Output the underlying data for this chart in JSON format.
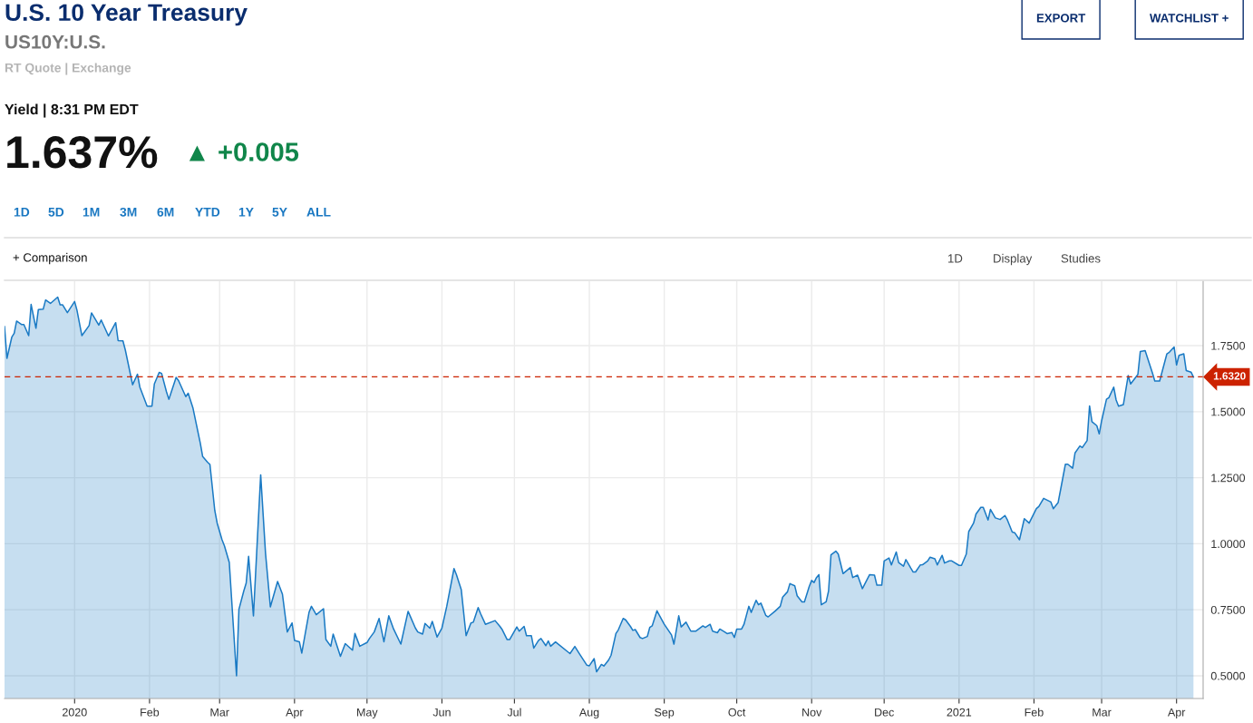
{
  "chart_data": {
    "type": "area",
    "title": "U.S. 10 Year Treasury",
    "subtitle": "US10Y:U.S.",
    "annotations": [
      "RT Quote | Exchange",
      "Yield | 8:31 PM EDT",
      "1.637%",
      "▲ +0.005",
      "EXPORT",
      "WATCHLIST +",
      "1D",
      "5D",
      "1M",
      "3M",
      "6M",
      "YTD",
      "1Y",
      "5Y",
      "ALL",
      "+ Comparison",
      "1D",
      "Display",
      "Studies"
    ],
    "x": [
      "2019-12-03",
      "2019-12-04",
      "2019-12-06",
      "2019-12-07",
      "2019-12-08",
      "2019-12-10",
      "2019-12-11",
      "2019-12-13",
      "2019-12-14",
      "2019-12-16",
      "2019-12-17",
      "2019-12-19",
      "2019-12-20",
      "2019-12-22",
      "2019-12-25",
      "2019-12-26",
      "2019-12-27",
      "2019-12-29",
      "2020-01-01",
      "2020-01-02",
      "2020-01-04",
      "2020-01-07",
      "2020-01-08",
      "2020-01-09",
      "2020-01-11",
      "2020-01-12",
      "2020-01-15",
      "2020-01-18",
      "2020-01-19",
      "2020-01-21",
      "2020-01-22",
      "2020-01-25",
      "2020-01-27",
      "2020-01-28",
      "2020-01-31",
      "2020-02-02",
      "2020-02-03",
      "2020-02-05",
      "2020-02-06",
      "2020-02-08",
      "2020-02-09",
      "2020-02-12",
      "2020-02-13",
      "2020-02-16",
      "2020-02-17",
      "2020-02-19",
      "2020-02-22",
      "2020-02-23",
      "2020-02-25",
      "2020-02-26",
      "2020-02-28",
      "2020-02-29",
      "2020-03-02",
      "2020-03-03",
      "2020-03-05",
      "2020-03-08",
      "2020-03-09",
      "2020-03-11",
      "2020-03-12",
      "2020-03-13",
      "2020-03-15",
      "2020-03-18",
      "2020-03-20",
      "2020-03-22",
      "2020-03-25",
      "2020-03-27",
      "2020-03-29",
      "2020-03-31",
      "2020-04-01",
      "2020-04-03",
      "2020-04-04",
      "2020-04-07",
      "2020-04-08",
      "2020-04-10",
      "2020-04-13",
      "2020-04-14",
      "2020-04-16",
      "2020-04-17",
      "2020-04-20",
      "2020-04-22",
      "2020-04-25",
      "2020-04-26",
      "2020-04-28",
      "2020-05-01",
      "2020-05-02",
      "2020-05-04",
      "2020-05-06",
      "2020-05-08",
      "2020-05-10",
      "2020-05-12",
      "2020-05-15",
      "2020-05-18",
      "2020-05-21",
      "2020-05-22",
      "2020-05-24",
      "2020-05-25",
      "2020-05-27",
      "2020-05-28",
      "2020-05-30",
      "2020-06-01",
      "2020-06-03",
      "2020-06-06",
      "2020-06-07",
      "2020-06-09",
      "2020-06-11",
      "2020-06-13",
      "2020-06-14",
      "2020-06-16",
      "2020-06-17",
      "2020-06-19",
      "2020-06-23",
      "2020-06-25",
      "2020-06-26",
      "2020-06-28",
      "2020-06-29",
      "2020-07-02",
      "2020-07-03",
      "2020-07-05",
      "2020-07-06",
      "2020-07-08",
      "2020-07-09",
      "2020-07-11",
      "2020-07-12",
      "2020-07-14",
      "2020-07-15",
      "2020-07-16",
      "2020-07-18",
      "2020-07-24",
      "2020-07-26",
      "2020-07-28",
      "2020-07-31",
      "2020-08-01",
      "2020-08-03",
      "2020-08-04",
      "2020-08-06",
      "2020-08-07",
      "2020-08-09",
      "2020-08-10",
      "2020-08-12",
      "2020-08-13",
      "2020-08-15",
      "2020-08-16",
      "2020-08-18",
      "2020-08-19",
      "2020-08-20",
      "2020-08-22",
      "2020-08-23",
      "2020-08-25",
      "2020-08-26",
      "2020-08-27",
      "2020-08-29",
      "2020-08-30",
      "2020-09-01",
      "2020-09-04",
      "2020-09-05",
      "2020-09-07",
      "2020-09-08",
      "2020-09-10",
      "2020-09-12",
      "2020-09-14",
      "2020-09-17",
      "2020-09-18",
      "2020-09-20",
      "2020-09-21",
      "2020-09-23",
      "2020-09-24",
      "2020-09-26",
      "2020-09-27",
      "2020-09-29",
      "2020-09-30",
      "2020-10-01",
      "2020-10-03",
      "2020-10-04",
      "2020-10-06",
      "2020-10-07",
      "2020-10-09",
      "2020-10-10",
      "2020-10-11",
      "2020-10-13",
      "2020-10-14",
      "2020-10-17",
      "2020-10-19",
      "2020-10-20",
      "2020-10-22",
      "2020-10-23",
      "2020-10-25",
      "2020-10-26",
      "2020-10-28",
      "2020-10-29",
      "2020-10-31",
      "2020-11-01",
      "2020-11-02",
      "2020-11-03",
      "2020-11-04",
      "2020-11-05",
      "2020-11-07",
      "2020-11-08",
      "2020-11-09",
      "2020-11-11",
      "2020-11-12",
      "2020-11-14",
      "2020-11-17",
      "2020-11-18",
      "2020-11-20",
      "2020-11-22",
      "2020-11-25",
      "2020-11-27",
      "2020-11-28",
      "2020-11-30",
      "2020-12-01",
      "2020-12-03",
      "2020-12-04",
      "2020-12-06",
      "2020-12-07",
      "2020-12-09",
      "2020-12-10",
      "2020-12-12",
      "2020-12-13",
      "2020-12-14",
      "2020-12-16",
      "2020-12-17",
      "2020-12-19",
      "2020-12-20",
      "2020-12-22",
      "2020-12-23",
      "2020-12-25",
      "2020-12-26",
      "2020-12-28",
      "2020-12-29",
      "2021-01-01",
      "2021-01-02",
      "2021-01-04",
      "2021-01-05",
      "2021-01-07",
      "2021-01-08",
      "2021-01-10",
      "2021-01-11",
      "2021-01-13",
      "2021-01-14",
      "2021-01-16",
      "2021-01-18",
      "2021-01-20",
      "2021-01-21",
      "2021-01-23",
      "2021-01-24",
      "2021-01-26",
      "2021-01-28",
      "2021-01-30",
      "2021-02-02",
      "2021-02-03",
      "2021-02-05",
      "2021-02-08",
      "2021-02-09",
      "2021-02-11",
      "2021-02-12",
      "2021-02-14",
      "2021-02-15",
      "2021-02-17",
      "2021-02-18",
      "2021-02-20",
      "2021-02-21",
      "2021-02-23",
      "2021-02-24",
      "2021-02-25",
      "2021-02-27",
      "2021-02-28",
      "2021-03-01",
      "2021-03-03",
      "2021-03-04",
      "2021-03-06",
      "2021-03-07",
      "2021-03-08",
      "2021-03-10",
      "2021-03-12",
      "2021-03-13",
      "2021-03-16",
      "2021-03-17",
      "2021-03-19",
      "2021-03-22",
      "2021-03-23",
      "2021-03-25",
      "2021-03-28",
      "2021-03-29",
      "2021-03-31",
      "2021-04-01",
      "2021-04-02",
      "2021-04-04",
      "2021-04-05",
      "2021-04-07",
      "2021-04-08"
    ],
    "series": [
      {
        "color": "#1a7ac4",
        "values": [
          1.822,
          1.702,
          1.782,
          1.797,
          1.843,
          1.83,
          1.83,
          1.788,
          1.906,
          1.816,
          1.887,
          1.888,
          1.923,
          1.91,
          1.934,
          1.905,
          1.905,
          1.875,
          1.917,
          1.883,
          1.788,
          1.826,
          1.874,
          1.859,
          1.828,
          1.847,
          1.787,
          1.837,
          1.769,
          1.768,
          1.733,
          1.602,
          1.642,
          1.593,
          1.521,
          1.521,
          1.605,
          1.649,
          1.645,
          1.576,
          1.547,
          1.63,
          1.618,
          1.557,
          1.57,
          1.513,
          1.381,
          1.33,
          1.309,
          1.3,
          1.126,
          1.078,
          1.015,
          0.992,
          0.929,
          0.5,
          0.752,
          0.821,
          0.851,
          0.952,
          0.727,
          1.261,
          0.964,
          0.761,
          0.857,
          0.809,
          0.666,
          0.7,
          0.634,
          0.629,
          0.586,
          0.74,
          0.763,
          0.731,
          0.754,
          0.637,
          0.612,
          0.658,
          0.574,
          0.622,
          0.597,
          0.66,
          0.612,
          0.626,
          0.641,
          0.666,
          0.717,
          0.629,
          0.727,
          0.677,
          0.62,
          0.744,
          0.681,
          0.666,
          0.658,
          0.698,
          0.68,
          0.706,
          0.647,
          0.681,
          0.763,
          0.906,
          0.883,
          0.826,
          0.652,
          0.7,
          0.703,
          0.758,
          0.735,
          0.695,
          0.709,
          0.687,
          0.674,
          0.637,
          0.637,
          0.685,
          0.669,
          0.687,
          0.652,
          0.652,
          0.605,
          0.634,
          0.641,
          0.614,
          0.632,
          0.612,
          0.628,
          0.584,
          0.611,
          0.582,
          0.54,
          0.538,
          0.565,
          0.515,
          0.543,
          0.537,
          0.56,
          0.578,
          0.66,
          0.674,
          0.717,
          0.712,
          0.687,
          0.672,
          0.675,
          0.645,
          0.641,
          0.649,
          0.683,
          0.689,
          0.746,
          0.729,
          0.695,
          0.655,
          0.62,
          0.727,
          0.685,
          0.703,
          0.669,
          0.669,
          0.689,
          0.683,
          0.695,
          0.669,
          0.663,
          0.677,
          0.666,
          0.66,
          0.664,
          0.645,
          0.677,
          0.677,
          0.695,
          0.763,
          0.74,
          0.786,
          0.769,
          0.775,
          0.729,
          0.723,
          0.746,
          0.763,
          0.798,
          0.818,
          0.849,
          0.841,
          0.803,
          0.78,
          0.78,
          0.838,
          0.861,
          0.853,
          0.872,
          0.883,
          0.769,
          0.78,
          0.821,
          0.958,
          0.972,
          0.961,
          0.887,
          0.91,
          0.872,
          0.881,
          0.83,
          0.883,
          0.881,
          0.843,
          0.843,
          0.935,
          0.946,
          0.92,
          0.969,
          0.929,
          0.915,
          0.94,
          0.908,
          0.893,
          0.893,
          0.92,
          0.921,
          0.935,
          0.949,
          0.943,
          0.92,
          0.956,
          0.927,
          0.935,
          0.935,
          0.918,
          0.918,
          0.961,
          1.046,
          1.078,
          1.112,
          1.138,
          1.138,
          1.09,
          1.13,
          1.098,
          1.092,
          1.107,
          1.09,
          1.044,
          1.042,
          1.015,
          1.095,
          1.078,
          1.133,
          1.141,
          1.172,
          1.158,
          1.133,
          1.156,
          1.204,
          1.301,
          1.301,
          1.286,
          1.344,
          1.37,
          1.364,
          1.391,
          1.522,
          1.462,
          1.447,
          1.416,
          1.466,
          1.547,
          1.553,
          1.593,
          1.544,
          1.521,
          1.527,
          1.637,
          1.605,
          1.641,
          1.728,
          1.731,
          1.647,
          1.616,
          1.616,
          1.719,
          1.725,
          1.745,
          1.677,
          1.713,
          1.719,
          1.656,
          1.65,
          1.631
        ]
      }
    ],
    "xlim": [
      "2019-12-03",
      "2021-04-12"
    ],
    "xticks": [
      {
        "value": "2020-01-01",
        "label": "2020"
      },
      {
        "value": "2020-02-01",
        "label": "Feb"
      },
      {
        "value": "2020-03-01",
        "label": "Mar"
      },
      {
        "value": "2020-04-01",
        "label": "Apr"
      },
      {
        "value": "2020-05-01",
        "label": "May"
      },
      {
        "value": "2020-06-01",
        "label": "Jun"
      },
      {
        "value": "2020-07-01",
        "label": "Jul"
      },
      {
        "value": "2020-08-01",
        "label": "Aug"
      },
      {
        "value": "2020-09-01",
        "label": "Sep"
      },
      {
        "value": "2020-10-01",
        "label": "Oct"
      },
      {
        "value": "2020-11-01",
        "label": "Nov"
      },
      {
        "value": "2020-12-01",
        "label": "Dec"
      },
      {
        "value": "2021-01-01",
        "label": "2021"
      },
      {
        "value": "2021-02-01",
        "label": "Feb"
      },
      {
        "value": "2021-03-01",
        "label": "Mar"
      },
      {
        "value": "2021-04-01",
        "label": "Apr"
      }
    ],
    "ylim": [
      0.414,
      1.994
    ],
    "yticks": [
      {
        "value": 0.5,
        "label": "0.5000"
      },
      {
        "value": 0.75,
        "label": "0.7500"
      },
      {
        "value": 1.0,
        "label": "1.0000"
      },
      {
        "value": 1.25,
        "label": "1.2500"
      },
      {
        "value": 1.5,
        "label": "1.5000"
      },
      {
        "value": 1.75,
        "label": "1.7500"
      }
    ],
    "ref_lines": [
      {
        "axis": "y",
        "value": 1.632,
        "label": "1.6320",
        "color": "#cc2200",
        "line_style": "dashed"
      }
    ],
    "grid": true
  }
}
